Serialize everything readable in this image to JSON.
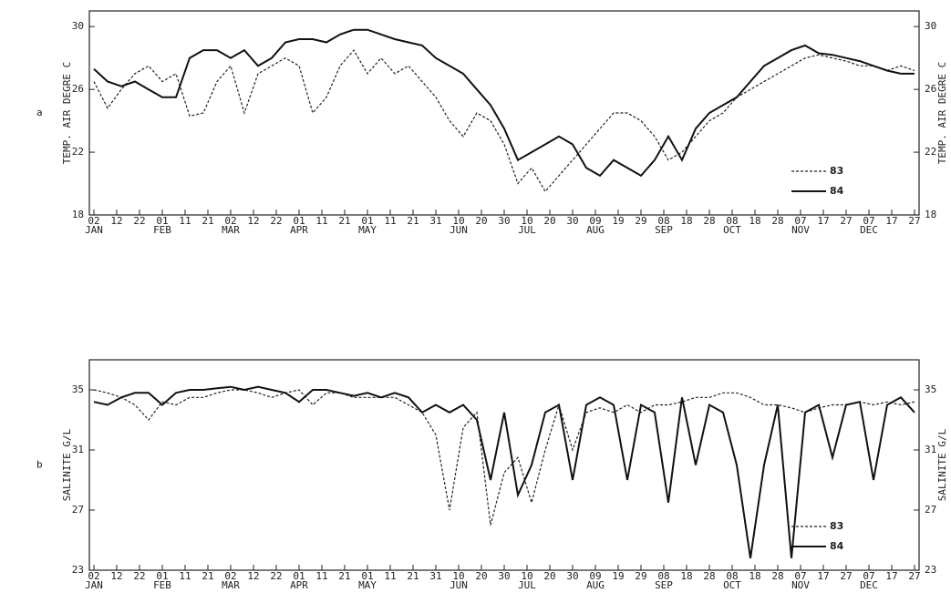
{
  "chart_data": [
    {
      "type": "line",
      "panel_label": "a",
      "ylabel": "TEMP. AIR   DEGRE C",
      "xlim": [
        0,
        364
      ],
      "ylim": [
        18,
        31
      ],
      "yticks": [
        18,
        22,
        26,
        30
      ],
      "legend": "lower right",
      "x": [
        2,
        8,
        14,
        20,
        26,
        32,
        38,
        44,
        50,
        56,
        62,
        68,
        74,
        80,
        86,
        92,
        98,
        104,
        110,
        116,
        122,
        128,
        134,
        140,
        146,
        152,
        158,
        164,
        170,
        176,
        182,
        188,
        194,
        200,
        206,
        212,
        218,
        224,
        230,
        236,
        242,
        248,
        254,
        260,
        266,
        272,
        278,
        284,
        290,
        296,
        302,
        308,
        314,
        320,
        326,
        332,
        338,
        344,
        350,
        356,
        362
      ],
      "xticks": [
        {
          "value": 2,
          "label": "02"
        },
        {
          "value": 12,
          "label": "12"
        },
        {
          "value": 22,
          "label": "22"
        },
        {
          "value": 32,
          "label": "01"
        },
        {
          "value": 42,
          "label": "11"
        },
        {
          "value": 52,
          "label": "21"
        },
        {
          "value": 62,
          "label": "02"
        },
        {
          "value": 72,
          "label": "12"
        },
        {
          "value": 82,
          "label": "22"
        },
        {
          "value": 92,
          "label": "01"
        },
        {
          "value": 102,
          "label": "11"
        },
        {
          "value": 112,
          "label": "21"
        },
        {
          "value": 122,
          "label": "01"
        },
        {
          "value": 132,
          "label": "11"
        },
        {
          "value": 142,
          "label": "21"
        },
        {
          "value": 152,
          "label": "31"
        },
        {
          "value": 162,
          "label": "10"
        },
        {
          "value": 172,
          "label": "20"
        },
        {
          "value": 182,
          "label": "30"
        },
        {
          "value": 192,
          "label": "10"
        },
        {
          "value": 202,
          "label": "20"
        },
        {
          "value": 212,
          "label": "30"
        },
        {
          "value": 222,
          "label": "09"
        },
        {
          "value": 232,
          "label": "19"
        },
        {
          "value": 242,
          "label": "29"
        },
        {
          "value": 252,
          "label": "08"
        },
        {
          "value": 262,
          "label": "18"
        },
        {
          "value": 272,
          "label": "28"
        },
        {
          "value": 282,
          "label": "08"
        },
        {
          "value": 292,
          "label": "18"
        },
        {
          "value": 302,
          "label": "28"
        },
        {
          "value": 312,
          "label": "07"
        },
        {
          "value": 322,
          "label": "17"
        },
        {
          "value": 332,
          "label": "27"
        },
        {
          "value": 342,
          "label": "07"
        },
        {
          "value": 352,
          "label": "17"
        },
        {
          "value": 362,
          "label": "27"
        }
      ],
      "months": [
        {
          "value": 2,
          "label": "JAN"
        },
        {
          "value": 32,
          "label": "FEB"
        },
        {
          "value": 62,
          "label": "MAR"
        },
        {
          "value": 92,
          "label": "APR"
        },
        {
          "value": 122,
          "label": "MAY"
        },
        {
          "value": 162,
          "label": "JUN"
        },
        {
          "value": 192,
          "label": "JUL"
        },
        {
          "value": 222,
          "label": "AUG"
        },
        {
          "value": 252,
          "label": "SEP"
        },
        {
          "value": 282,
          "label": "OCT"
        },
        {
          "value": 312,
          "label": "NOV"
        },
        {
          "value": 342,
          "label": "DEC"
        }
      ],
      "series": [
        {
          "name": "83",
          "color": "#222222",
          "dash": true,
          "values": [
            26.5,
            24.8,
            26.0,
            27.0,
            27.5,
            26.5,
            27.0,
            24.3,
            24.5,
            26.5,
            27.5,
            24.5,
            27.0,
            27.5,
            28.0,
            27.5,
            24.5,
            25.5,
            27.5,
            28.5,
            27.0,
            28.0,
            27.0,
            27.5,
            26.5,
            25.5,
            24.0,
            23.0,
            24.5,
            24.0,
            22.5,
            20.0,
            21.0,
            19.5,
            20.5,
            21.5,
            22.5,
            23.5,
            24.5,
            24.5,
            24.0,
            23.0,
            21.5,
            22.0,
            23.0,
            24.0,
            24.5,
            25.5,
            26.0,
            26.5,
            27.0,
            27.5,
            28.0,
            28.2,
            28.0,
            27.8,
            27.5,
            27.5,
            27.2,
            27.5,
            27.2
          ]
        },
        {
          "name": "84",
          "color": "#111111",
          "dash": false,
          "values": [
            27.3,
            26.5,
            26.2,
            26.5,
            26.0,
            25.5,
            25.5,
            28.0,
            28.5,
            28.5,
            28.0,
            28.5,
            27.5,
            28.0,
            29.0,
            29.2,
            29.2,
            29.0,
            29.5,
            29.8,
            29.8,
            29.5,
            29.2,
            29.0,
            28.8,
            28.0,
            27.5,
            27.0,
            26.0,
            25.0,
            23.5,
            21.5,
            22.0,
            22.5,
            23.0,
            22.5,
            21.0,
            20.5,
            21.5,
            21.0,
            20.5,
            21.5,
            23.0,
            21.5,
            23.5,
            24.5,
            25.0,
            25.5,
            26.5,
            27.5,
            28.0,
            28.5,
            28.8,
            28.3,
            28.2,
            28.0,
            27.8,
            27.5,
            27.2,
            27.0,
            27.0
          ]
        }
      ]
    },
    {
      "type": "line",
      "panel_label": "b",
      "ylabel": "SALINITE     G/L",
      "xlim": [
        0,
        364
      ],
      "ylim": [
        23,
        37
      ],
      "yticks": [
        23,
        27,
        31,
        35
      ],
      "legend": "lower right",
      "x": [
        2,
        8,
        14,
        20,
        26,
        32,
        38,
        44,
        50,
        56,
        62,
        68,
        74,
        80,
        86,
        92,
        98,
        104,
        110,
        116,
        122,
        128,
        134,
        140,
        146,
        152,
        158,
        164,
        170,
        176,
        182,
        188,
        194,
        200,
        206,
        212,
        218,
        224,
        230,
        236,
        242,
        248,
        254,
        260,
        266,
        272,
        278,
        284,
        290,
        296,
        302,
        308,
        314,
        320,
        326,
        332,
        338,
        344,
        350,
        356,
        362
      ],
      "xticks": [
        {
          "value": 2,
          "label": "02"
        },
        {
          "value": 12,
          "label": "12"
        },
        {
          "value": 22,
          "label": "22"
        },
        {
          "value": 32,
          "label": "01"
        },
        {
          "value": 42,
          "label": "11"
        },
        {
          "value": 52,
          "label": "21"
        },
        {
          "value": 62,
          "label": "02"
        },
        {
          "value": 72,
          "label": "12"
        },
        {
          "value": 82,
          "label": "22"
        },
        {
          "value": 92,
          "label": "01"
        },
        {
          "value": 102,
          "label": "11"
        },
        {
          "value": 112,
          "label": "21"
        },
        {
          "value": 122,
          "label": "01"
        },
        {
          "value": 132,
          "label": "11"
        },
        {
          "value": 142,
          "label": "21"
        },
        {
          "value": 152,
          "label": "31"
        },
        {
          "value": 162,
          "label": "10"
        },
        {
          "value": 172,
          "label": "20"
        },
        {
          "value": 182,
          "label": "30"
        },
        {
          "value": 192,
          "label": "10"
        },
        {
          "value": 202,
          "label": "20"
        },
        {
          "value": 212,
          "label": "30"
        },
        {
          "value": 222,
          "label": "09"
        },
        {
          "value": 232,
          "label": "19"
        },
        {
          "value": 242,
          "label": "29"
        },
        {
          "value": 252,
          "label": "08"
        },
        {
          "value": 262,
          "label": "18"
        },
        {
          "value": 272,
          "label": "28"
        },
        {
          "value": 282,
          "label": "08"
        },
        {
          "value": 292,
          "label": "18"
        },
        {
          "value": 302,
          "label": "28"
        },
        {
          "value": 312,
          "label": "07"
        },
        {
          "value": 322,
          "label": "17"
        },
        {
          "value": 332,
          "label": "27"
        },
        {
          "value": 342,
          "label": "07"
        },
        {
          "value": 352,
          "label": "17"
        },
        {
          "value": 362,
          "label": "27"
        }
      ],
      "months": [
        {
          "value": 2,
          "label": "JAN"
        },
        {
          "value": 32,
          "label": "FEB"
        },
        {
          "value": 62,
          "label": "MAR"
        },
        {
          "value": 92,
          "label": "APR"
        },
        {
          "value": 122,
          "label": "MAY"
        },
        {
          "value": 162,
          "label": "JUN"
        },
        {
          "value": 192,
          "label": "JUL"
        },
        {
          "value": 222,
          "label": "AUG"
        },
        {
          "value": 252,
          "label": "SEP"
        },
        {
          "value": 282,
          "label": "OCT"
        },
        {
          "value": 312,
          "label": "NOV"
        },
        {
          "value": 342,
          "label": "DEC"
        }
      ],
      "series": [
        {
          "name": "83",
          "color": "#222222",
          "dash": true,
          "values": [
            35.0,
            34.8,
            34.5,
            34.0,
            33.0,
            34.2,
            34.0,
            34.5,
            34.5,
            34.8,
            35.0,
            35.0,
            34.8,
            34.5,
            34.8,
            35.0,
            34.0,
            34.8,
            34.8,
            34.5,
            34.5,
            34.5,
            34.5,
            34.0,
            33.5,
            32.0,
            27.0,
            32.5,
            33.5,
            26.0,
            29.5,
            30.5,
            27.5,
            31.0,
            34.0,
            31.0,
            33.5,
            33.8,
            33.5,
            34.0,
            33.5,
            34.0,
            34.0,
            34.2,
            34.5,
            34.5,
            34.8,
            34.8,
            34.5,
            34.0,
            34.0,
            33.8,
            33.5,
            33.8,
            34.0,
            34.0,
            34.2,
            34.0,
            34.2,
            34.0,
            34.2
          ]
        },
        {
          "name": "84",
          "color": "#111111",
          "dash": false,
          "values": [
            34.2,
            34.0,
            34.5,
            34.8,
            34.8,
            34.0,
            34.8,
            35.0,
            35.0,
            35.1,
            35.2,
            35.0,
            35.2,
            35.0,
            34.8,
            34.2,
            35.0,
            35.0,
            34.8,
            34.6,
            34.8,
            34.5,
            34.8,
            34.5,
            33.5,
            34.0,
            33.5,
            34.0,
            33.0,
            29.0,
            33.5,
            28.0,
            30.0,
            33.5,
            34.0,
            29.0,
            34.0,
            34.5,
            34.0,
            29.0,
            34.0,
            33.5,
            27.5,
            34.5,
            30.0,
            34.0,
            33.5,
            30.0,
            23.8,
            30.0,
            34.0,
            23.8,
            33.5,
            34.0,
            30.5,
            34.0,
            34.2,
            29.0,
            34.0,
            34.5,
            33.5
          ]
        }
      ]
    }
  ]
}
